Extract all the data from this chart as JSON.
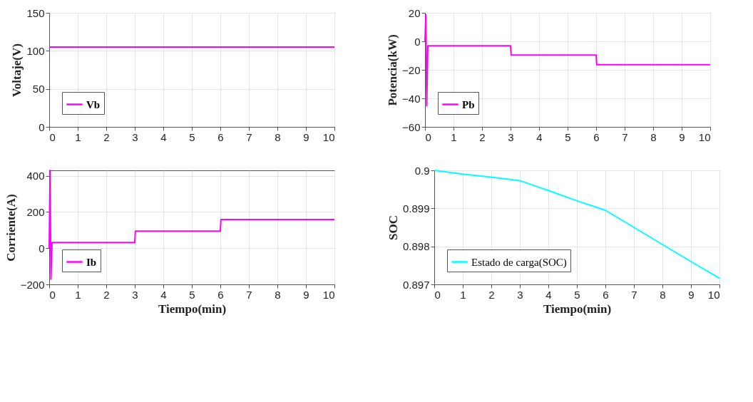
{
  "chart_data": [
    {
      "type": "line",
      "ylabel": "Voltaje(V)",
      "xlim": [
        0,
        10
      ],
      "xticks": [
        0,
        1,
        2,
        3,
        4,
        5,
        6,
        7,
        8,
        9,
        10
      ],
      "ylim": [
        0,
        150
      ],
      "yticks": [
        0,
        50,
        100,
        150
      ],
      "grid": true,
      "legend": "bottom left",
      "x": [
        0,
        10
      ],
      "series": [
        {
          "name": "Vb",
          "color": "#ff00ff",
          "values": [
            105,
            105
          ]
        }
      ]
    },
    {
      "type": "line",
      "ylabel": "Potencia(kW)",
      "xlim": [
        0,
        10
      ],
      "xticks": [
        0,
        1,
        2,
        3,
        4,
        5,
        6,
        7,
        8,
        9,
        10
      ],
      "ylim": [
        -60,
        20
      ],
      "yticks": [
        -60,
        -40,
        -20,
        0,
        20
      ],
      "grid": true,
      "legend": "bottom left",
      "x": [
        0,
        0.03,
        0.06,
        0.1,
        3,
        3.02,
        6,
        6.02,
        10
      ],
      "series": [
        {
          "name": "Pb",
          "color": "#ff00ff",
          "values": [
            0,
            18.7,
            -45.3,
            -3.1,
            -3.1,
            -9.6,
            -9.6,
            -16.4,
            -16.4
          ]
        }
      ]
    },
    {
      "type": "line",
      "xlabel": "Tiempo(min)",
      "ylabel": "Corriente(A)",
      "xlim": [
        0,
        10
      ],
      "xticks": [
        0,
        1,
        2,
        3,
        4,
        5,
        6,
        7,
        8,
        9,
        10
      ],
      "ylim": [
        -200,
        430
      ],
      "yticks": [
        -200,
        0,
        200,
        400
      ],
      "grid": true,
      "legend": "bottom left",
      "x": [
        0,
        0.03,
        0.06,
        0.1,
        3,
        3.02,
        6,
        6.02,
        10
      ],
      "series": [
        {
          "name": "Ib",
          "color": "#ff00ff",
          "values": [
            0,
            430,
            -171,
            31,
            31,
            94,
            94,
            158,
            158
          ]
        }
      ]
    },
    {
      "type": "line",
      "xlabel": "Tiempo(min)",
      "ylabel": "SOC",
      "xlim": [
        0,
        10
      ],
      "xticks": [
        0,
        1,
        2,
        3,
        4,
        5,
        6,
        7,
        8,
        9,
        10
      ],
      "ylim": [
        0.897,
        0.9
      ],
      "yticks": [
        0.897,
        0.898,
        0.899,
        0.9
      ],
      "grid": true,
      "legend": "bottom left",
      "x": [
        0,
        1,
        2,
        3,
        4,
        5,
        6,
        7,
        8,
        9,
        10
      ],
      "series": [
        {
          "name": "Estado de carga(SOC)",
          "color": "#00ffff",
          "values": [
            0.9,
            0.8999,
            0.89982,
            0.89973,
            0.89947,
            0.8992,
            0.89895,
            0.8985,
            0.89805,
            0.8976,
            0.89716
          ]
        }
      ]
    }
  ]
}
